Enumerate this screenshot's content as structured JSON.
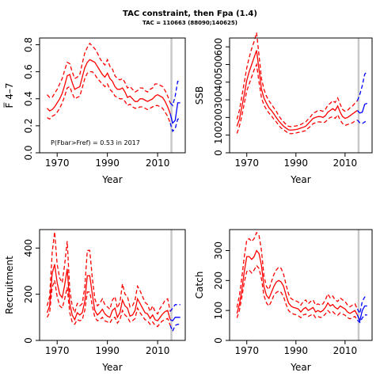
{
  "title": "TAC constraint, then Fpa (1.4)",
  "subtitle": "TAC = 110663 (88090;140625)",
  "colors": {
    "history": "#ff0000",
    "forecast": "#0000ff",
    "refline": "#c8c8c8"
  },
  "chart_data": [
    {
      "type": "line",
      "ylabel": "F̅ 4–7",
      "xlabel": "Year",
      "annotation": "P(Fbar>Fref) = 0.53  in 2017",
      "xlim": [
        1963,
        2021
      ],
      "ylim": [
        0,
        0.85
      ],
      "xticks": [
        1970,
        1990,
        2010
      ],
      "yticks": [
        0,
        0.2,
        0.4,
        0.6,
        0.8
      ],
      "ytick_labels": [
        "0.0",
        "0.2",
        "0.4",
        "0.6",
        "0.8"
      ],
      "vline": 2015.5,
      "years": [
        1966,
        1967,
        1968,
        1969,
        1970,
        1971,
        1972,
        1973,
        1974,
        1975,
        1976,
        1977,
        1978,
        1979,
        1980,
        1981,
        1982,
        1983,
        1984,
        1985,
        1986,
        1987,
        1988,
        1989,
        1990,
        1991,
        1992,
        1993,
        1994,
        1995,
        1996,
        1997,
        1998,
        1999,
        2000,
        2001,
        2002,
        2003,
        2004,
        2005,
        2006,
        2007,
        2008,
        2009,
        2010,
        2011,
        2012,
        2013,
        2014,
        2015
      ],
      "median": [
        0.33,
        0.31,
        0.32,
        0.34,
        0.37,
        0.4,
        0.44,
        0.5,
        0.57,
        0.58,
        0.52,
        0.47,
        0.48,
        0.49,
        0.56,
        0.63,
        0.67,
        0.69,
        0.68,
        0.67,
        0.64,
        0.61,
        0.58,
        0.56,
        0.59,
        0.55,
        0.53,
        0.49,
        0.47,
        0.47,
        0.48,
        0.45,
        0.41,
        0.42,
        0.4,
        0.38,
        0.38,
        0.4,
        0.4,
        0.39,
        0.38,
        0.39,
        0.4,
        0.42,
        0.43,
        0.42,
        0.41,
        0.38,
        0.34,
        0.29
      ],
      "lower": [
        0.26,
        0.25,
        0.27,
        0.28,
        0.3,
        0.33,
        0.37,
        0.42,
        0.48,
        0.49,
        0.44,
        0.4,
        0.41,
        0.42,
        0.48,
        0.55,
        0.59,
        0.6,
        0.6,
        0.58,
        0.55,
        0.53,
        0.51,
        0.49,
        0.51,
        0.47,
        0.45,
        0.42,
        0.41,
        0.4,
        0.4,
        0.38,
        0.35,
        0.36,
        0.34,
        0.33,
        0.33,
        0.34,
        0.34,
        0.33,
        0.32,
        0.33,
        0.34,
        0.35,
        0.35,
        0.34,
        0.33,
        0.3,
        0.27,
        0.22
      ],
      "upper": [
        0.43,
        0.41,
        0.41,
        0.44,
        0.47,
        0.51,
        0.55,
        0.61,
        0.67,
        0.66,
        0.6,
        0.55,
        0.56,
        0.58,
        0.66,
        0.74,
        0.78,
        0.81,
        0.79,
        0.77,
        0.74,
        0.7,
        0.67,
        0.65,
        0.69,
        0.64,
        0.62,
        0.57,
        0.55,
        0.54,
        0.55,
        0.52,
        0.48,
        0.49,
        0.47,
        0.45,
        0.46,
        0.48,
        0.48,
        0.46,
        0.45,
        0.47,
        0.48,
        0.51,
        0.51,
        0.5,
        0.49,
        0.46,
        0.42,
        0.37
      ],
      "fc_years": [
        2015,
        2016,
        2017,
        2018,
        2019
      ],
      "fc_median": [
        0.29,
        0.22,
        0.24,
        0.37,
        0.37
      ],
      "fc_lower": [
        0.22,
        0.16,
        0.18,
        0.25,
        0.25
      ],
      "fc_upper": [
        0.37,
        0.35,
        0.42,
        0.53,
        0.53
      ]
    },
    {
      "type": "line",
      "ylabel": "SSB",
      "xlabel": "Year",
      "xlim": [
        1963,
        2021
      ],
      "ylim": [
        0,
        650
      ],
      "xticks": [
        1970,
        1990,
        2010
      ],
      "yticks": [
        0,
        100,
        200,
        300,
        400,
        500,
        600
      ],
      "ytick_labels": [
        "0",
        "100",
        "200",
        "300",
        "400",
        "500",
        "600"
      ],
      "vline": 2015.5,
      "years": [
        1966,
        1967,
        1968,
        1969,
        1970,
        1971,
        1972,
        1973,
        1974,
        1975,
        1976,
        1977,
        1978,
        1979,
        1980,
        1981,
        1982,
        1983,
        1984,
        1985,
        1986,
        1987,
        1988,
        1989,
        1990,
        1991,
        1992,
        1993,
        1994,
        1995,
        1996,
        1997,
        1998,
        1999,
        2000,
        2001,
        2002,
        2003,
        2004,
        2005,
        2006,
        2007,
        2008,
        2009,
        2010,
        2011,
        2012,
        2013,
        2014,
        2015
      ],
      "median": [
        150,
        190,
        260,
        330,
        410,
        460,
        500,
        540,
        580,
        470,
        360,
        310,
        280,
        255,
        240,
        220,
        200,
        180,
        165,
        150,
        140,
        130,
        128,
        130,
        132,
        135,
        140,
        145,
        150,
        165,
        180,
        195,
        200,
        205,
        205,
        200,
        210,
        230,
        240,
        250,
        240,
        265,
        230,
        205,
        195,
        200,
        210,
        220,
        230,
        240
      ],
      "lower": [
        110,
        150,
        210,
        280,
        350,
        390,
        430,
        470,
        500,
        400,
        310,
        270,
        245,
        225,
        210,
        190,
        175,
        155,
        140,
        130,
        120,
        110,
        108,
        110,
        112,
        115,
        118,
        122,
        125,
        140,
        150,
        165,
        170,
        175,
        175,
        170,
        175,
        190,
        200,
        205,
        195,
        215,
        185,
        165,
        155,
        160,
        165,
        170,
        180,
        185
      ],
      "upper": [
        190,
        240,
        320,
        400,
        480,
        540,
        590,
        630,
        680,
        550,
        420,
        360,
        320,
        295,
        275,
        255,
        235,
        210,
        190,
        175,
        160,
        150,
        148,
        150,
        152,
        155,
        160,
        168,
        175,
        190,
        205,
        225,
        230,
        240,
        240,
        235,
        245,
        270,
        280,
        295,
        285,
        310,
        275,
        245,
        235,
        240,
        255,
        265,
        280,
        295
      ],
      "fc_years": [
        2015,
        2016,
        2017,
        2018,
        2019
      ],
      "fc_median": [
        240,
        225,
        230,
        275,
        280
      ],
      "fc_lower": [
        185,
        170,
        165,
        175,
        180
      ],
      "fc_upper": [
        295,
        330,
        380,
        445,
        460
      ]
    },
    {
      "type": "line",
      "ylabel": "Recruitment",
      "xlabel": "Year",
      "xlim": [
        1963,
        2021
      ],
      "ylim": [
        0,
        480
      ],
      "xticks": [
        1970,
        1990,
        2010
      ],
      "yticks": [
        0,
        200,
        400
      ],
      "ytick_labels": [
        "0",
        "200",
        "400"
      ],
      "vline": 2015.5,
      "years": [
        1966,
        1967,
        1968,
        1969,
        1970,
        1971,
        1972,
        1973,
        1974,
        1975,
        1976,
        1977,
        1978,
        1979,
        1980,
        1981,
        1982,
        1983,
        1984,
        1985,
        1986,
        1987,
        1988,
        1989,
        1990,
        1991,
        1992,
        1993,
        1994,
        1995,
        1996,
        1997,
        1998,
        1999,
        2000,
        2001,
        2002,
        2003,
        2004,
        2005,
        2006,
        2007,
        2008,
        2009,
        2010,
        2011,
        2012,
        2013,
        2014,
        2015
      ],
      "median": [
        120,
        150,
        290,
        330,
        250,
        200,
        185,
        240,
        310,
        160,
        110,
        90,
        120,
        110,
        120,
        170,
        280,
        280,
        200,
        130,
        110,
        120,
        135,
        115,
        105,
        100,
        130,
        140,
        100,
        120,
        175,
        150,
        140,
        105,
        110,
        130,
        180,
        160,
        140,
        120,
        115,
        95,
        110,
        90,
        85,
        100,
        115,
        125,
        130,
        90
      ],
      "lower": [
        100,
        120,
        230,
        260,
        190,
        150,
        140,
        180,
        230,
        120,
        80,
        70,
        90,
        85,
        90,
        130,
        210,
        210,
        150,
        100,
        85,
        90,
        100,
        85,
        80,
        75,
        95,
        100,
        75,
        90,
        130,
        110,
        100,
        80,
        85,
        95,
        140,
        120,
        105,
        90,
        85,
        70,
        80,
        65,
        60,
        75,
        85,
        90,
        95,
        65
      ],
      "upper": [
        150,
        190,
        380,
        470,
        330,
        270,
        250,
        330,
        430,
        220,
        150,
        120,
        160,
        150,
        160,
        230,
        390,
        390,
        270,
        180,
        150,
        160,
        180,
        155,
        145,
        135,
        175,
        190,
        140,
        165,
        245,
        200,
        190,
        145,
        150,
        175,
        235,
        215,
        190,
        165,
        155,
        125,
        150,
        125,
        115,
        140,
        155,
        175,
        180,
        125
      ],
      "fc_years": [
        2015,
        2016,
        2017,
        2018,
        2019
      ],
      "fc_median": [
        90,
        85,
        100,
        100,
        100
      ],
      "fc_lower": [
        65,
        40,
        65,
        70,
        70
      ],
      "fc_upper": [
        125,
        140,
        155,
        155,
        155
      ]
    },
    {
      "type": "line",
      "ylabel": "Catch",
      "xlabel": "Year",
      "xlim": [
        1963,
        2021
      ],
      "ylim": [
        0,
        370
      ],
      "xticks": [
        1970,
        1990,
        2010
      ],
      "yticks": [
        0,
        100,
        200,
        300
      ],
      "ytick_labels": [
        "0",
        "100",
        "200",
        "300"
      ],
      "vline": 2015.5,
      "years": [
        1966,
        1967,
        1968,
        1969,
        1970,
        1971,
        1972,
        1973,
        1974,
        1975,
        1976,
        1977,
        1978,
        1979,
        1980,
        1981,
        1982,
        1983,
        1984,
        1985,
        1986,
        1987,
        1988,
        1989,
        1990,
        1991,
        1992,
        1993,
        1994,
        1995,
        1996,
        1997,
        1998,
        1999,
        2000,
        2001,
        2002,
        2003,
        2004,
        2005,
        2006,
        2007,
        2008,
        2009,
        2010,
        2011,
        2012,
        2013,
        2014,
        2015
      ],
      "median": [
        90,
        120,
        170,
        230,
        280,
        280,
        270,
        280,
        300,
        290,
        250,
        180,
        150,
        140,
        160,
        180,
        195,
        200,
        195,
        180,
        150,
        125,
        115,
        110,
        108,
        105,
        95,
        105,
        110,
        100,
        105,
        110,
        95,
        100,
        95,
        100,
        110,
        125,
        115,
        120,
        110,
        105,
        115,
        110,
        105,
        95,
        90,
        95,
        100,
        85
      ],
      "lower": [
        75,
        100,
        145,
        195,
        230,
        235,
        225,
        235,
        250,
        240,
        205,
        150,
        125,
        115,
        130,
        150,
        160,
        165,
        160,
        145,
        120,
        100,
        92,
        88,
        86,
        82,
        76,
        85,
        88,
        80,
        84,
        88,
        76,
        80,
        76,
        80,
        88,
        100,
        92,
        96,
        88,
        84,
        92,
        88,
        84,
        76,
        72,
        76,
        80,
        68
      ],
      "upper": [
        110,
        150,
        210,
        280,
        335,
        340,
        330,
        340,
        360,
        350,
        300,
        215,
        180,
        170,
        195,
        220,
        235,
        245,
        240,
        220,
        185,
        155,
        140,
        135,
        132,
        128,
        118,
        130,
        135,
        122,
        130,
        135,
        118,
        122,
        118,
        122,
        135,
        155,
        142,
        148,
        135,
        130,
        142,
        135,
        130,
        118,
        112,
        118,
        122,
        105
      ],
      "fc_years": [
        2015,
        2016,
        2017,
        2018,
        2019
      ],
      "fc_median": [
        85,
        65,
        100,
        115,
        115
      ],
      "fc_lower": [
        68,
        60,
        75,
        85,
        85
      ],
      "fc_upper": [
        105,
        90,
        130,
        145,
        145
      ]
    }
  ]
}
